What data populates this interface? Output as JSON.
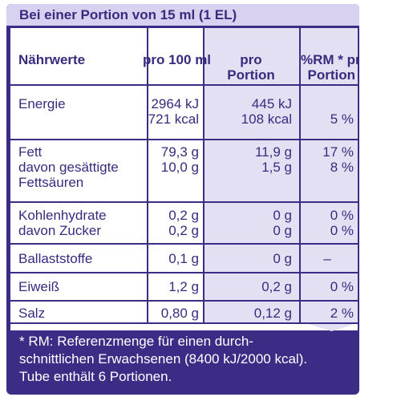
{
  "header": {
    "title": "Bei einer Portion von 15 ml (1 EL)"
  },
  "columns": {
    "name": "Nährwerte",
    "per100": "pro 100 ml",
    "perPortion1": "pro",
    "perPortion2": "Portion",
    "rm1": "%RM * pro",
    "rm2": "Portion"
  },
  "rows": {
    "energy": {
      "label": "Energie",
      "v100a": "2964 kJ",
      "v100b": "721 kcal",
      "vpa": "445 kJ",
      "vpb": "108 kcal",
      "rm": "5 %"
    },
    "fat": {
      "label": "Fett",
      "sub1": "davon gesättigte",
      "sub2": "Fettsäuren",
      "v100": "79,3 g",
      "v100sub": "10,0 g",
      "vp": "11,9 g",
      "vpsub": "1,5 g",
      "rm": "17 %",
      "rmsub": "8 %"
    },
    "carbs": {
      "label": "Kohlenhydrate",
      "sub": "davon Zucker",
      "v100": "0,2 g",
      "v100sub": "0,2 g",
      "vp": "0 g",
      "vpsub": "0 g",
      "rm": "0 %",
      "rmsub": "0 %"
    },
    "fibre": {
      "label": "Ballaststoffe",
      "v100": "0,1 g",
      "vp": "0 g",
      "rm": "–"
    },
    "protein": {
      "label": "Eiweiß",
      "v100": "1,2 g",
      "vp": "0,2 g",
      "rm": "0 %"
    },
    "salt": {
      "label": "Salz",
      "v100": "0,80 g",
      "vp": "0,12 g",
      "rm": "2 %"
    }
  },
  "footer": {
    "line1": "* RM: Referenzmenge für einen durch-",
    "line2": "schnittlichen Erwachsenen (8400 kJ/2000 kcal).",
    "line3": "Tube enthält 6 Portionen."
  },
  "colors": {
    "brand": "#3d2c85",
    "header_bg": "#d8d2f0",
    "shade": "#e4e0f4"
  }
}
